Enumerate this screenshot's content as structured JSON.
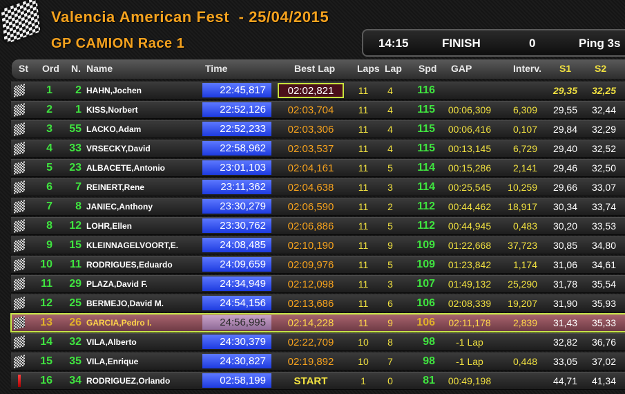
{
  "header": {
    "title": "Valencia American Fest  - 25/04/2015",
    "subtitle": "GP CAMION Race 1",
    "time_of_day": "14:15",
    "session_state": "FINISH",
    "counter": "0",
    "ping": "Ping 3s"
  },
  "columns": {
    "st": "St",
    "ord": "Ord",
    "num": "N.",
    "name": "Name",
    "time": "Time",
    "best_lap": "Best Lap",
    "laps": "Laps",
    "lap": "Lap",
    "spd": "Spd",
    "gap": "GAP",
    "interval": "Interv.",
    "s1": "S1",
    "s2": "S2"
  },
  "colors": {
    "title": "#f5a21e",
    "position": "#3fe33f",
    "time_box": "#2f4cf0",
    "values": "#f0e040",
    "highlight_row": "#8c4a55",
    "highlight_border": "#c9e84a"
  },
  "rows": [
    {
      "status": "checkered-flag",
      "ord": "1",
      "num": "2",
      "name": "HAHN,Jochen",
      "time": "22:45,817",
      "best": "02:02,821",
      "laps": "11",
      "lap": "4",
      "spd": "116",
      "gap": "",
      "int": "",
      "s1": "29,35",
      "s2": "32,25"
    },
    {
      "status": "checkered-flag",
      "ord": "2",
      "num": "1",
      "name": "KISS,Norbert",
      "time": "22:52,126",
      "best": "02:03,704",
      "laps": "11",
      "lap": "4",
      "spd": "115",
      "gap": "00:06,309",
      "int": "6,309",
      "s1": "29,55",
      "s2": "32,44"
    },
    {
      "status": "checkered-flag",
      "ord": "3",
      "num": "55",
      "name": "LACKO,Adam",
      "time": "22:52,233",
      "best": "02:03,306",
      "laps": "11",
      "lap": "4",
      "spd": "115",
      "gap": "00:06,416",
      "int": "0,107",
      "s1": "29,84",
      "s2": "32,29"
    },
    {
      "status": "checkered-flag",
      "ord": "4",
      "num": "33",
      "name": "VRSECKY,David",
      "time": "22:58,962",
      "best": "02:03,537",
      "laps": "11",
      "lap": "4",
      "spd": "115",
      "gap": "00:13,145",
      "int": "6,729",
      "s1": "29,40",
      "s2": "32,52"
    },
    {
      "status": "checkered-flag",
      "ord": "5",
      "num": "23",
      "name": "ALBACETE,Antonio",
      "time": "23:01,103",
      "best": "02:04,161",
      "laps": "11",
      "lap": "5",
      "spd": "114",
      "gap": "00:15,286",
      "int": "2,141",
      "s1": "29,46",
      "s2": "32,50"
    },
    {
      "status": "checkered-flag",
      "ord": "6",
      "num": "7",
      "name": "REINERT,Rene",
      "time": "23:11,362",
      "best": "02:04,638",
      "laps": "11",
      "lap": "3",
      "spd": "114",
      "gap": "00:25,545",
      "int": "10,259",
      "s1": "29,66",
      "s2": "33,07"
    },
    {
      "status": "checkered-flag",
      "ord": "7",
      "num": "8",
      "name": "JANIEC,Anthony",
      "time": "23:30,279",
      "best": "02:06,590",
      "laps": "11",
      "lap": "2",
      "spd": "112",
      "gap": "00:44,462",
      "int": "18,917",
      "s1": "30,34",
      "s2": "33,74"
    },
    {
      "status": "checkered-flag",
      "ord": "8",
      "num": "12",
      "name": "LOHR,Ellen",
      "time": "23:30,762",
      "best": "02:06,886",
      "laps": "11",
      "lap": "5",
      "spd": "112",
      "gap": "00:44,945",
      "int": "0,483",
      "s1": "30,20",
      "s2": "33,53"
    },
    {
      "status": "checkered-flag",
      "ord": "9",
      "num": "15",
      "name": "KLEINNAGELVOORT,E.",
      "time": "24:08,485",
      "best": "02:10,190",
      "laps": "11",
      "lap": "9",
      "spd": "109",
      "gap": "01:22,668",
      "int": "37,723",
      "s1": "30,85",
      "s2": "34,80"
    },
    {
      "status": "checkered-flag",
      "ord": "10",
      "num": "11",
      "name": "RODRIGUES,Eduardo",
      "time": "24:09,659",
      "best": "02:09,976",
      "laps": "11",
      "lap": "5",
      "spd": "109",
      "gap": "01:23,842",
      "int": "1,174",
      "s1": "31,06",
      "s2": "34,61"
    },
    {
      "status": "checkered-flag",
      "ord": "11",
      "num": "29",
      "name": "PLAZA,David F.",
      "time": "24:34,949",
      "best": "02:12,098",
      "laps": "11",
      "lap": "3",
      "spd": "107",
      "gap": "01:49,132",
      "int": "25,290",
      "s1": "31,78",
      "s2": "35,54"
    },
    {
      "status": "checkered-flag",
      "ord": "12",
      "num": "25",
      "name": "BERMEJO,David M.",
      "time": "24:54,156",
      "best": "02:13,686",
      "laps": "11",
      "lap": "6",
      "spd": "106",
      "gap": "02:08,339",
      "int": "19,207",
      "s1": "31,90",
      "s2": "35,93"
    },
    {
      "status": "checkered-flag",
      "ord": "13",
      "num": "26",
      "name": "GARCIA,Pedro I.",
      "time": "24:56,995",
      "best": "02:14,228",
      "laps": "11",
      "lap": "9",
      "spd": "106",
      "gap": "02:11,178",
      "int": "2,839",
      "s1": "31,43",
      "s2": "35,33"
    },
    {
      "status": "checkered-flag",
      "ord": "14",
      "num": "32",
      "name": "VILA,Alberto",
      "time": "24:30,379",
      "best": "02:22,709",
      "laps": "10",
      "lap": "8",
      "spd": "98",
      "gap": "-1 Lap",
      "int": "",
      "s1": "32,82",
      "s2": "36,76"
    },
    {
      "status": "checkered-flag",
      "ord": "15",
      "num": "35",
      "name": "VILA,Enrique",
      "time": "24:30,827",
      "best": "02:19,892",
      "laps": "10",
      "lap": "7",
      "spd": "98",
      "gap": "-1 Lap",
      "int": "0,448",
      "s1": "33,05",
      "s2": "37,02"
    },
    {
      "status": "red-flag",
      "ord": "16",
      "num": "34",
      "name": "RODRIGUEZ,Orlando",
      "time": "02:58,199",
      "best": "START",
      "laps": "1",
      "lap": "0",
      "spd": "81",
      "gap": "00:49,198",
      "int": "",
      "s1": "44,71",
      "s2": "41,34"
    }
  ]
}
